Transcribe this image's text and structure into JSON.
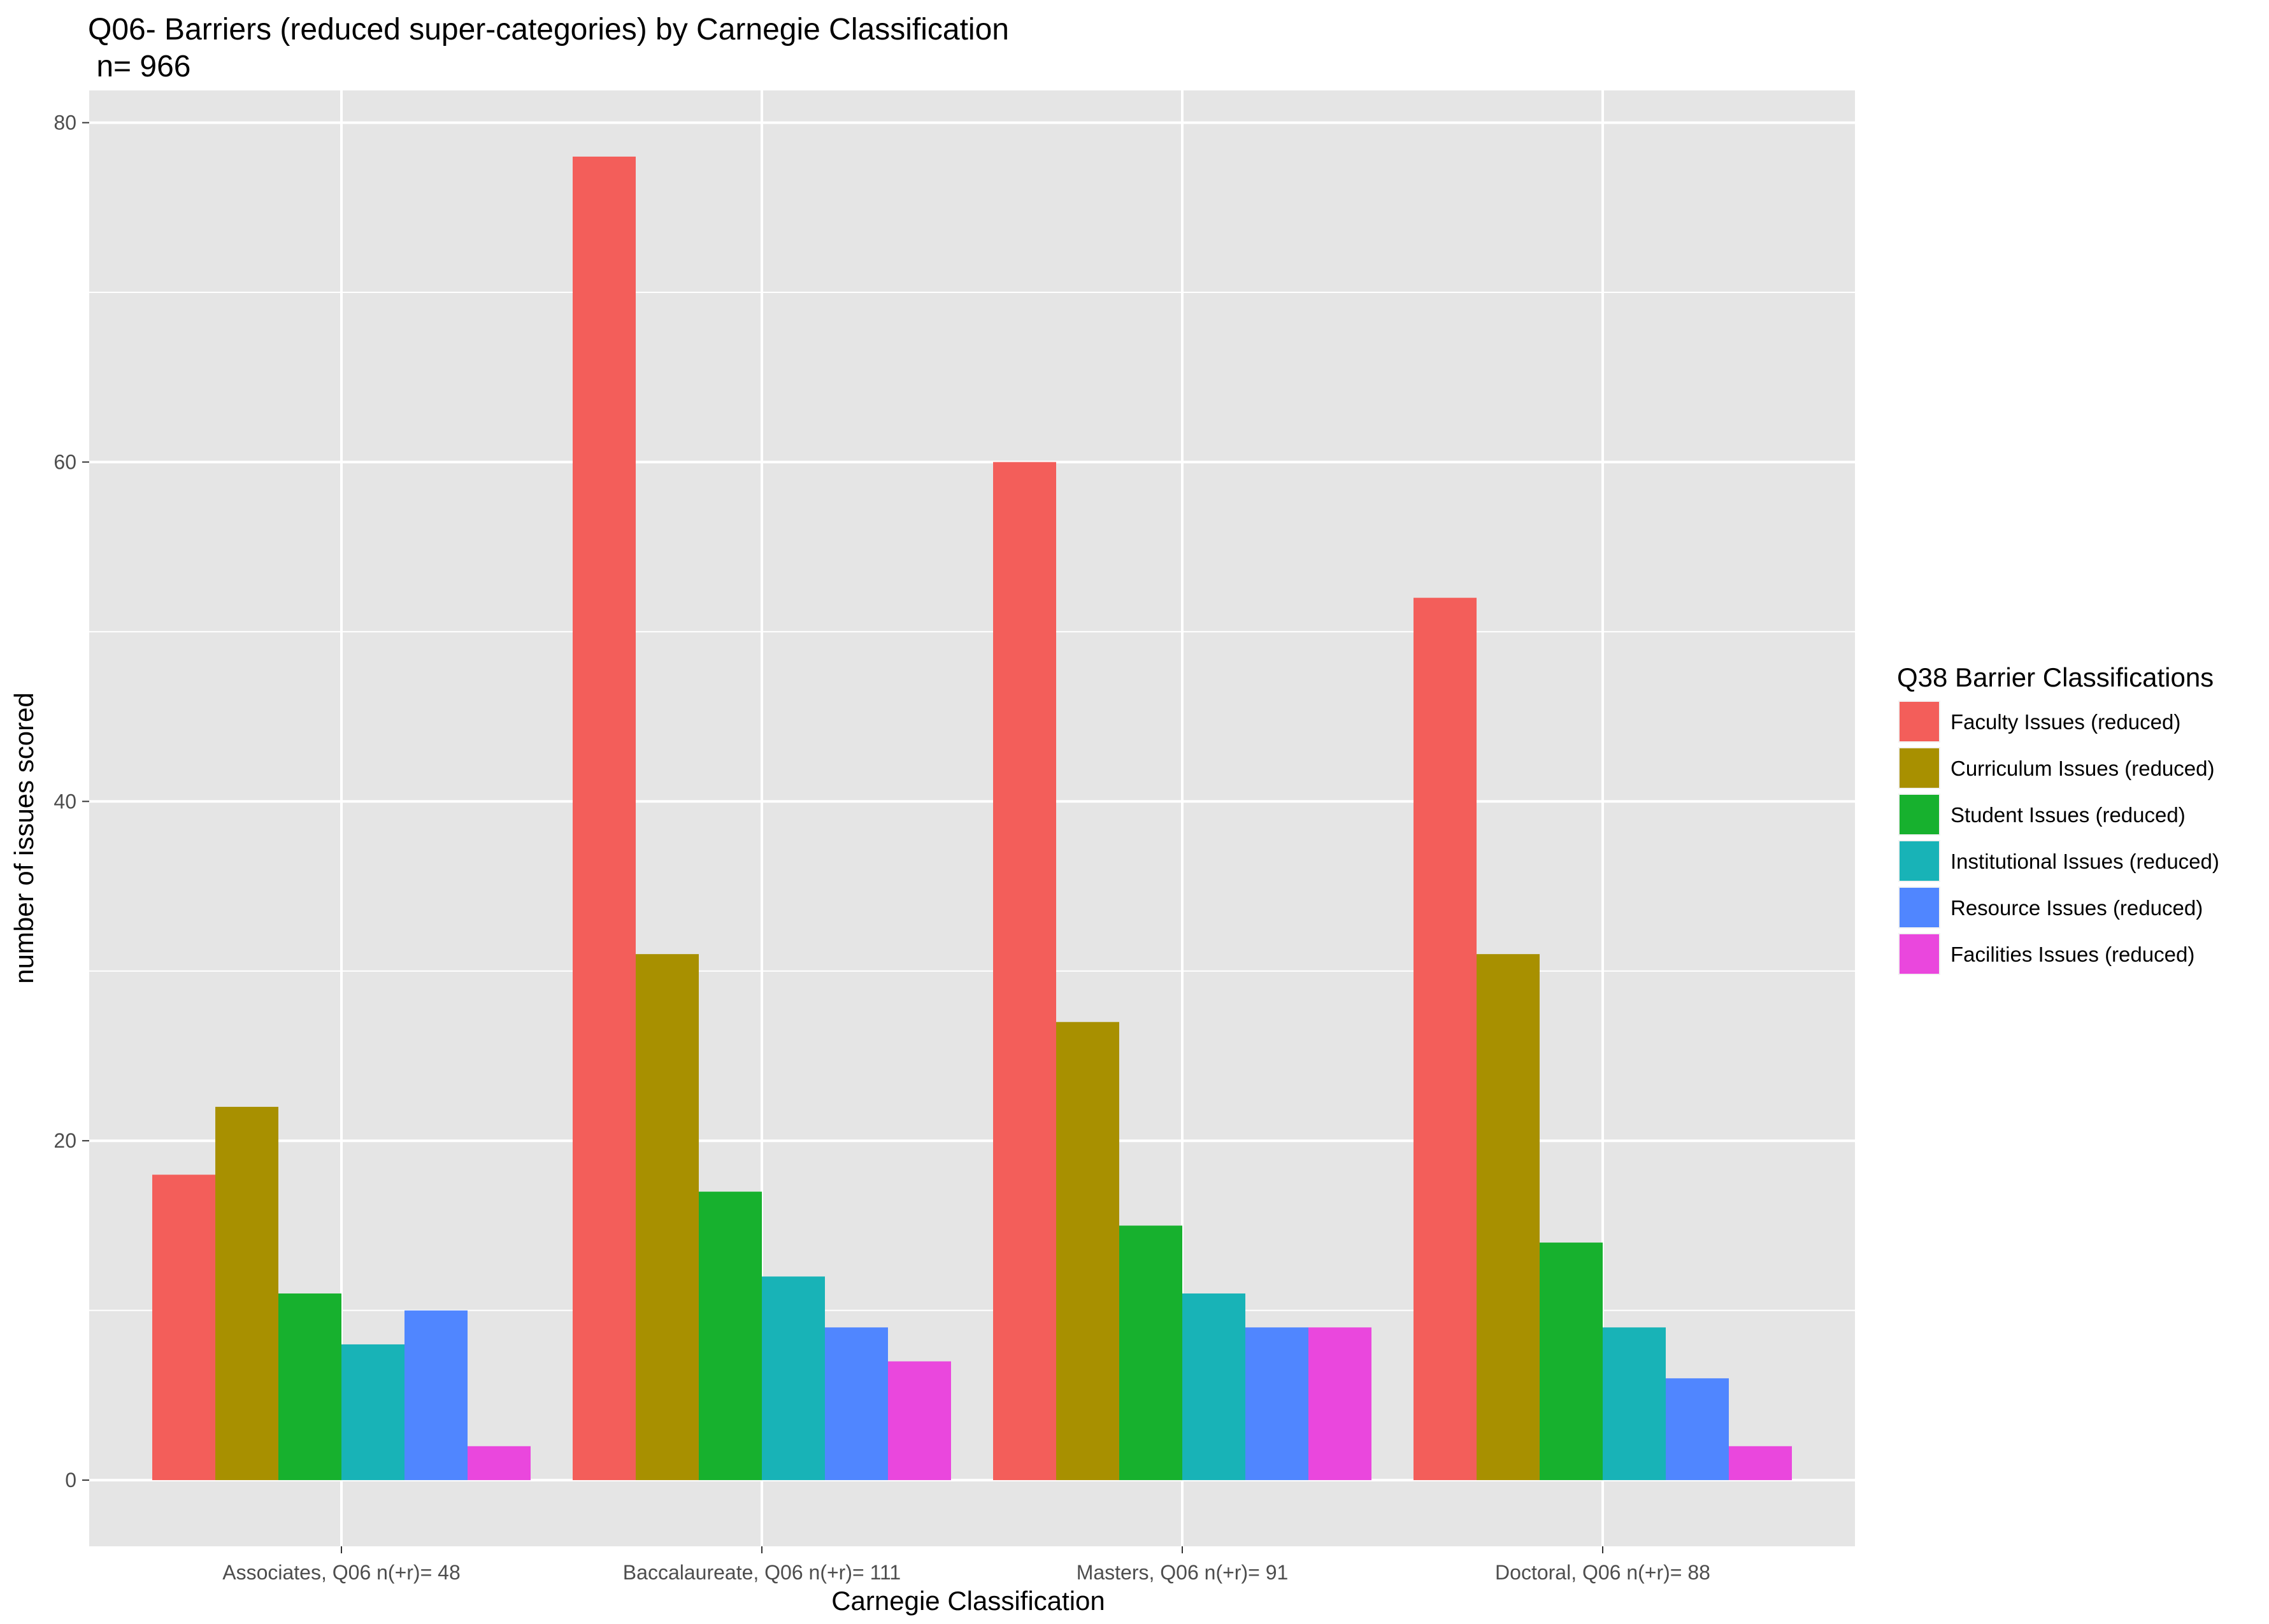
{
  "chart_data": {
    "type": "bar",
    "title": "Q06- Barriers (reduced super-categories) by Carnegie Classification",
    "subtitle": " n= 966",
    "xlabel": "Carnegie Classification",
    "ylabel": "number of issues scored",
    "ylim": [
      -3.9,
      81.9
    ],
    "yticks": [
      0,
      20,
      40,
      60,
      80
    ],
    "grid": true,
    "legend_title": "Q38 Barrier Classifications",
    "legend_position": "right",
    "categories": [
      "Associates, Q06 n(+r)= 48",
      "Baccalaureate, Q06 n(+r)= 111",
      "Masters, Q06 n(+r)= 91",
      "Doctoral, Q06 n(+r)= 88"
    ],
    "series": [
      {
        "name": "Faculty Issues (reduced)",
        "color": "#F35E5A",
        "values": [
          18,
          78,
          60,
          52
        ]
      },
      {
        "name": "Curriculum Issues (reduced)",
        "color": "#A89000",
        "values": [
          22,
          31,
          27,
          31
        ]
      },
      {
        "name": "Student Issues (reduced)",
        "color": "#17B12E",
        "values": [
          11,
          17,
          15,
          14
        ]
      },
      {
        "name": "Institutional Issues (reduced)",
        "color": "#18B3B7",
        "values": [
          8,
          12,
          11,
          9
        ]
      },
      {
        "name": "Resource Issues (reduced)",
        "color": "#5086FF",
        "values": [
          10,
          9,
          9,
          6
        ]
      },
      {
        "name": "Facilities Issues (reduced)",
        "color": "#EA47DD",
        "values": [
          2,
          7,
          9,
          2
        ]
      }
    ]
  },
  "colors": {
    "panel_background": "#E5E5E5",
    "grid_line": "#FFFFFF"
  }
}
